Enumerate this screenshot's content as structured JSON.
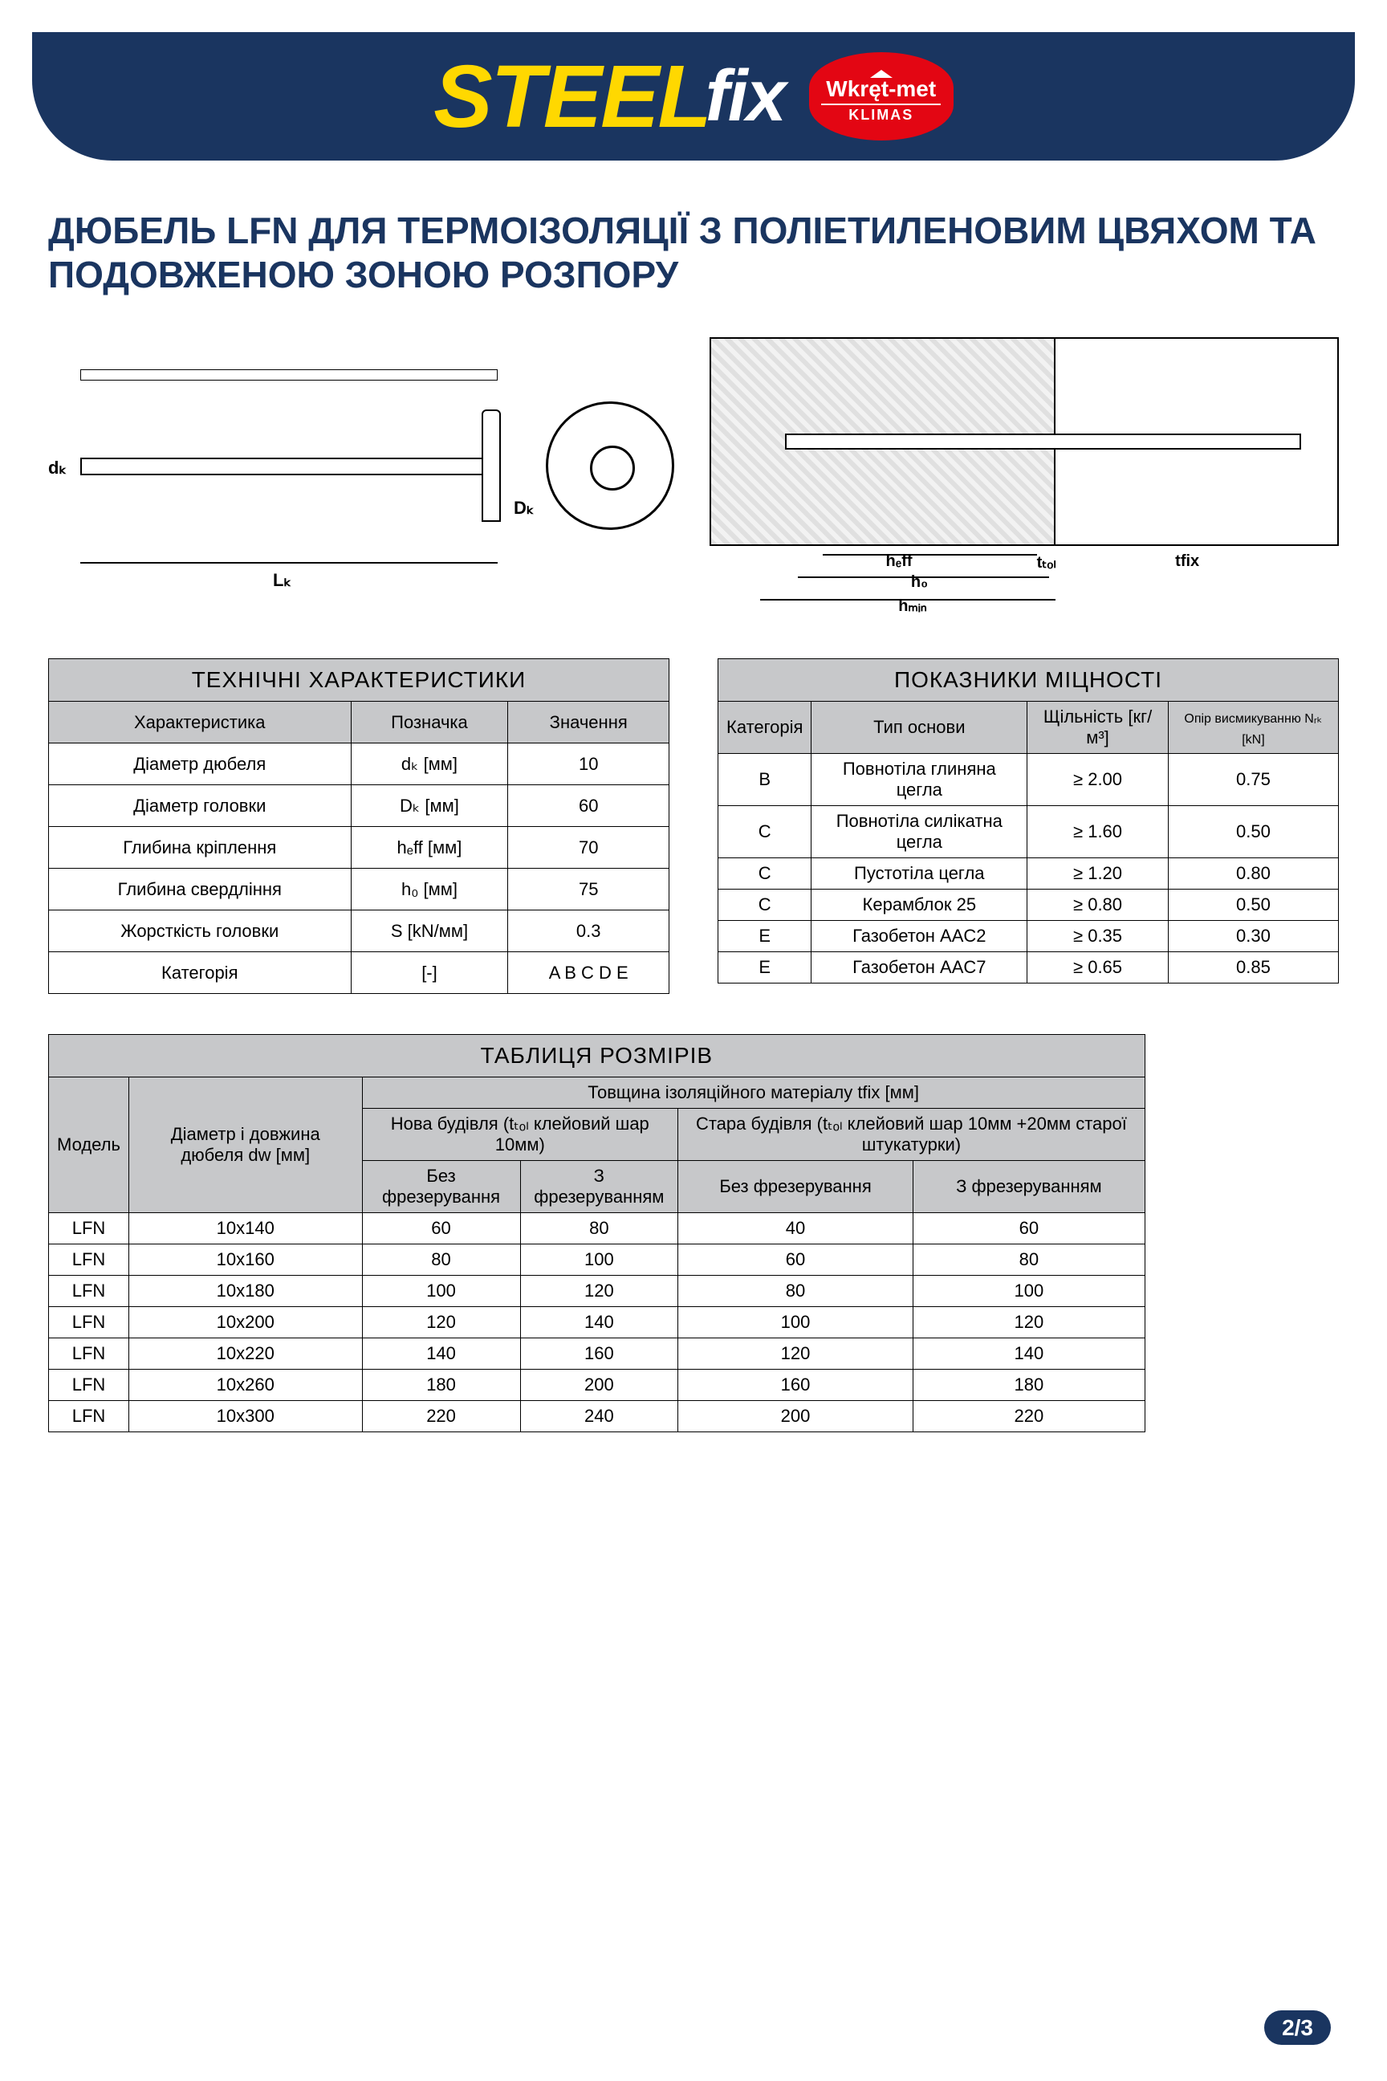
{
  "header": {
    "logo_steel": "STEEL",
    "logo_fix": "fix",
    "badge_top": "Wkręt-met",
    "badge_bottom": "KLIMAS",
    "colors": {
      "band": "#1a3560",
      "yellow": "#ffd800",
      "red": "#e30613"
    }
  },
  "title": "ДЮБЕЛЬ LFN ДЛЯ ТЕРМОІЗОЛЯЦІЇ З ПОЛІЕТИЛЕНОВИМ ЦВЯХОМ ТА ПОДОВЖЕНОЮ ЗОНОЮ РОЗПОРУ",
  "diagram_labels": {
    "dk": "dₖ",
    "Dk": "Dₖ",
    "Lk": "Lₖ",
    "heff": "hₑff",
    "ttol": "tₜₒₗ",
    "tfix": "tfix",
    "h0": "h₀",
    "hmin": "hₘᵢₙ"
  },
  "specs_table": {
    "title": "ТЕХНІЧНІ ХАРАКТЕРИСТИКИ",
    "headers": [
      "Характеристика",
      "Позначка",
      "Значення"
    ],
    "rows": [
      [
        "Діаметр дюбеля",
        "dₖ [мм]",
        "10"
      ],
      [
        "Діаметр головки",
        "Dₖ [мм]",
        "60"
      ],
      [
        "Глибина кріплення",
        "hₑff [мм]",
        "70"
      ],
      [
        "Глибина свердління",
        "h₀ [мм]",
        "75"
      ],
      [
        "Жорсткість головки",
        "S [kN/мм]",
        "0.3"
      ],
      [
        "Категорія",
        "[-]",
        "A B C D E"
      ]
    ]
  },
  "strength_table": {
    "title": "ПОКАЗНИКИ МІЦНОСТІ",
    "headers": [
      "Категорія",
      "Тип основи",
      "Щільність [кг/м³]",
      "Опір висмикуванню Nᵣₖ [kN]"
    ],
    "rows": [
      [
        "B",
        "Повнотіла глиняна цегла",
        "≥ 2.00",
        "0.75"
      ],
      [
        "C",
        "Повнотіла силікатна цегла",
        "≥ 1.60",
        "0.50"
      ],
      [
        "C",
        "Пустотіла цегла",
        "≥ 1.20",
        "0.80"
      ],
      [
        "C",
        "Керамблок 25",
        "≥ 0.80",
        "0.50"
      ],
      [
        "E",
        "Газобетон AAC2",
        "≥ 0.35",
        "0.30"
      ],
      [
        "E",
        "Газобетон AAC7",
        "≥ 0.65",
        "0.85"
      ]
    ]
  },
  "sizes_table": {
    "title": "ТАБЛИЦЯ РОЗМІРІВ",
    "super_header": "Товщина ізоляційного матеріалу tfix [мм]",
    "col_model": "Модель",
    "col_dw": "Діаметр і довжина дюбеля dw [мм]",
    "col_new": "Нова будівля (tₜₒₗ клейовий шар 10мм)",
    "col_old": "Стара будівля (tₜₒₗ клейовий шар 10мм +20мм старої штукатурки)",
    "sub_a": "Без фрезерування",
    "sub_b": "З фрезеруванням",
    "rows": [
      [
        "LFN",
        "10x140",
        "60",
        "80",
        "40",
        "60"
      ],
      [
        "LFN",
        "10x160",
        "80",
        "100",
        "60",
        "80"
      ],
      [
        "LFN",
        "10x180",
        "100",
        "120",
        "80",
        "100"
      ],
      [
        "LFN",
        "10x200",
        "120",
        "140",
        "100",
        "120"
      ],
      [
        "LFN",
        "10x220",
        "140",
        "160",
        "120",
        "140"
      ],
      [
        "LFN",
        "10x260",
        "180",
        "200",
        "160",
        "180"
      ],
      [
        "LFN",
        "10x300",
        "220",
        "240",
        "200",
        "220"
      ]
    ]
  },
  "footer": {
    "page": "2/3"
  }
}
